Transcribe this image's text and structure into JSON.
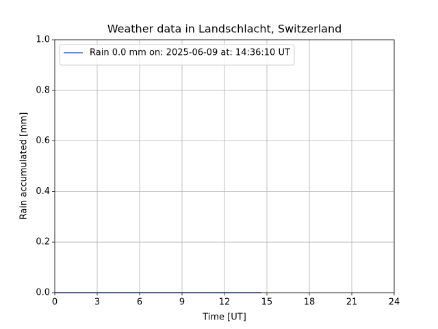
{
  "chart_data": {
    "type": "line",
    "title": "Weather data in Landschlacht, Switzerland",
    "x_label": "Time [UT]",
    "y_label": "Rain accumulated [mm]",
    "x": [
      0,
      14.6
    ],
    "series": [
      {
        "name": "Rain 0.0 mm on: 2025-06-09 at: 14:36:10 UT",
        "color": "#3366dd",
        "values": [
          0,
          0
        ]
      }
    ],
    "xlim": [
      0,
      24
    ],
    "xticks": [
      0,
      3,
      6,
      9,
      12,
      15,
      18,
      21,
      24
    ],
    "ylim": [
      0,
      1
    ],
    "yticks": [
      {
        "value": 0,
        "label": "0.0"
      },
      {
        "value": 0.2,
        "label": "0.2"
      },
      {
        "value": 0.4,
        "label": "0.4"
      },
      {
        "value": 0.6,
        "label": "0.6"
      },
      {
        "value": 0.8,
        "label": "0.8"
      },
      {
        "value": 1,
        "label": "1.0"
      }
    ],
    "grid": true,
    "legend": "upper left"
  }
}
